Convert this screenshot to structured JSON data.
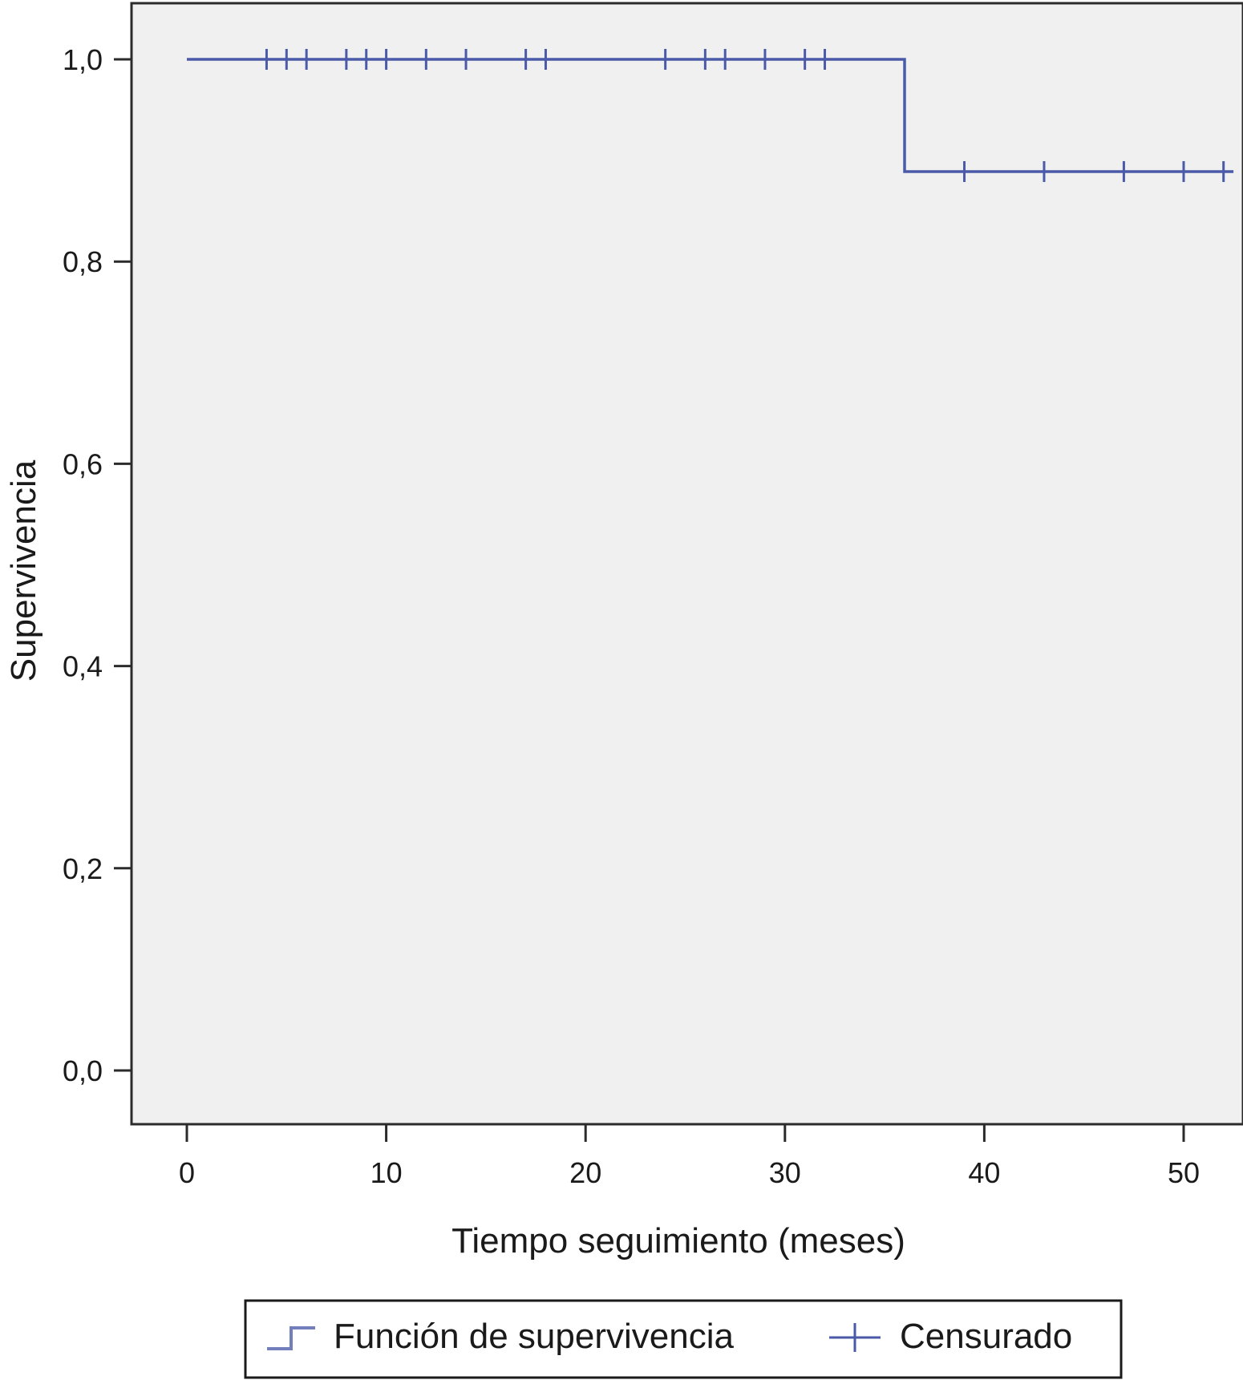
{
  "chart_data": {
    "type": "line",
    "subtype": "kaplan-meier-step",
    "title": "",
    "xlabel": "Tiempo seguimiento (meses)",
    "ylabel": "Supervivencia",
    "xlim": [
      0,
      52.5
    ],
    "ylim": [
      -0.055,
      1.055
    ],
    "x_ticks": [
      0,
      10,
      20,
      30,
      40,
      50
    ],
    "x_tick_labels": [
      "0",
      "10",
      "20",
      "30",
      "40",
      "50"
    ],
    "y_ticks": [
      0,
      0.2,
      0.4,
      0.6,
      0.8,
      1.0
    ],
    "y_tick_labels": [
      "0,0",
      "0,2",
      "0,4",
      "0,6",
      "0,8",
      "1,0"
    ],
    "grid": false,
    "plot_background": "#f0f0f0",
    "series": [
      {
        "name": "Función de supervivencia",
        "color": "#4a5aa8",
        "step_points": [
          {
            "x": 0,
            "y": 1.0
          },
          {
            "x": 36,
            "y": 1.0
          },
          {
            "x": 36,
            "y": 0.889
          },
          {
            "x": 52.5,
            "y": 0.889
          }
        ],
        "censored": [
          {
            "x": 4,
            "y": 1.0
          },
          {
            "x": 5,
            "y": 1.0
          },
          {
            "x": 6,
            "y": 1.0
          },
          {
            "x": 8,
            "y": 1.0
          },
          {
            "x": 9,
            "y": 1.0
          },
          {
            "x": 10,
            "y": 1.0
          },
          {
            "x": 12,
            "y": 1.0
          },
          {
            "x": 14,
            "y": 1.0
          },
          {
            "x": 17,
            "y": 1.0
          },
          {
            "x": 18,
            "y": 1.0
          },
          {
            "x": 24,
            "y": 1.0
          },
          {
            "x": 26,
            "y": 1.0
          },
          {
            "x": 27,
            "y": 1.0
          },
          {
            "x": 29,
            "y": 1.0
          },
          {
            "x": 31,
            "y": 1.0
          },
          {
            "x": 32,
            "y": 1.0
          },
          {
            "x": 39,
            "y": 0.889
          },
          {
            "x": 43,
            "y": 0.889
          },
          {
            "x": 47,
            "y": 0.889
          },
          {
            "x": 50,
            "y": 0.889
          },
          {
            "x": 52,
            "y": 0.889
          }
        ]
      }
    ],
    "legend": {
      "placement": "bottom",
      "entries": [
        {
          "label": "Función de supervivencia",
          "symbol": "step-line"
        },
        {
          "label": "Censurado",
          "symbol": "plus"
        }
      ]
    }
  }
}
